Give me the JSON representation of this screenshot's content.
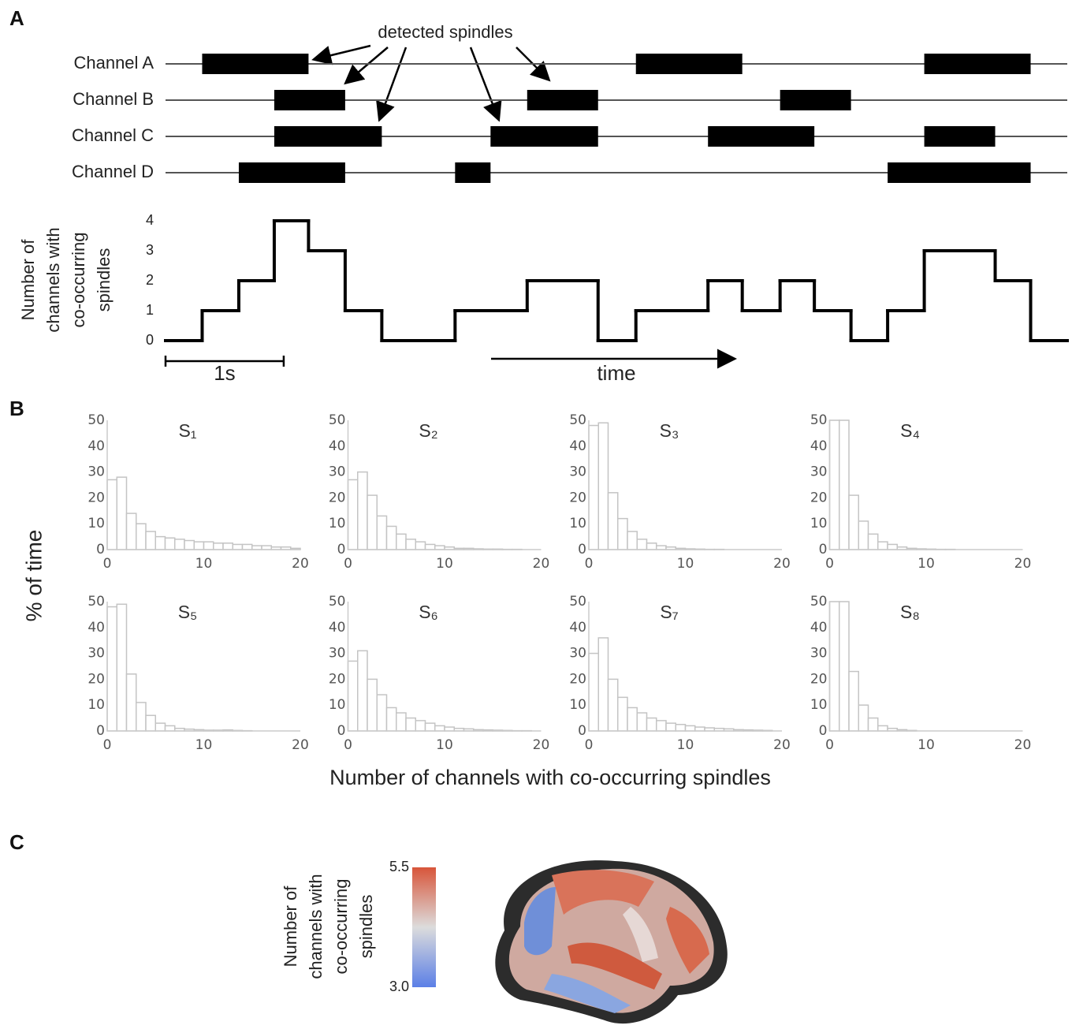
{
  "chart_data": [
    {
      "type": "spindles",
      "panel": "A",
      "annotation": "detected spindles",
      "channels": [
        {
          "name": "Channel A",
          "spindles": [
            [
              0.31,
              1.21
            ],
            [
              3.98,
              4.88
            ],
            [
              6.42,
              7.32
            ]
          ]
        },
        {
          "name": "Channel B",
          "spindles": [
            [
              0.92,
              1.52
            ],
            [
              3.06,
              3.66
            ],
            [
              5.2,
              5.8
            ]
          ]
        },
        {
          "name": "Channel C",
          "spindles": [
            [
              0.92,
              1.83
            ],
            [
              2.75,
              3.66
            ],
            [
              4.59,
              5.49
            ],
            [
              6.42,
              7.02
            ]
          ]
        },
        {
          "name": "Channel D",
          "spindles": [
            [
              0.62,
              1.52
            ],
            [
              2.45,
              2.75
            ],
            [
              6.11,
              7.32
            ]
          ]
        }
      ],
      "step": {
        "bins": [
          0,
          0.31,
          0.62,
          0.92,
          1.21,
          1.52,
          1.83,
          2.45,
          3.06,
          3.66,
          3.98,
          4.59,
          4.88,
          5.2,
          5.49,
          5.8,
          6.11,
          6.42,
          7.02,
          7.32,
          7.63
        ],
        "values": [
          0,
          1,
          2,
          4,
          3,
          1,
          0,
          1,
          2,
          0,
          1,
          2,
          1,
          2,
          1,
          0,
          1,
          3,
          2,
          0
        ],
        "color": "#000000"
      },
      "xlim": [
        0,
        7.63
      ],
      "ylim": [
        0,
        4
      ],
      "yticks": [
        0,
        1,
        2,
        3,
        4
      ],
      "ylabel_lines": [
        "Number of",
        "channels with",
        "co-occurring",
        "spindles"
      ],
      "scalebar": {
        "value": 1,
        "label": "1s"
      },
      "time_label": "time"
    },
    {
      "type": "histogram",
      "panel": "B",
      "ylabel": "% of time",
      "xlabel": "Number of channels with co-occurring spindles",
      "bins": [
        0,
        1,
        2,
        3,
        4,
        5,
        6,
        7,
        8,
        9,
        10,
        11,
        12,
        13,
        14,
        15,
        16,
        17,
        18,
        19,
        20
      ],
      "xlim": [
        0,
        20
      ],
      "xticks": [
        0,
        10,
        20
      ],
      "ylim": [
        0,
        50
      ],
      "yticks": [
        0,
        10,
        20,
        30,
        40,
        50
      ],
      "series": [
        {
          "name": "S₁",
          "color": "#ffffff",
          "values": [
            27,
            28,
            14,
            10,
            7,
            5,
            4.5,
            4,
            3.5,
            3,
            3,
            2.5,
            2.5,
            2,
            2,
            1.5,
            1.5,
            1,
            1,
            0.5
          ]
        },
        {
          "name": "S₂",
          "color": "#ffffff",
          "values": [
            27,
            30,
            21,
            13,
            9,
            6,
            4,
            3,
            2,
            1.5,
            1,
            0.5,
            0.5,
            0.3,
            0.2,
            0.2,
            0.1,
            0.1,
            0,
            0
          ]
        },
        {
          "name": "S₃",
          "color": "#ffffff",
          "values": [
            48,
            49,
            22,
            12,
            7,
            4,
            2.5,
            1.5,
            1,
            0.5,
            0.3,
            0.2,
            0.1,
            0.1,
            0,
            0,
            0,
            0,
            0,
            0
          ]
        },
        {
          "name": "S₄",
          "color": "#ffffff",
          "values": [
            50,
            50,
            21,
            11,
            6,
            3,
            2,
            1,
            0.5,
            0.3,
            0.2,
            0.1,
            0.1,
            0,
            0,
            0,
            0,
            0,
            0,
            0
          ]
        },
        {
          "name": "S₅",
          "color": "#ffffff",
          "values": [
            48,
            49,
            22,
            11,
            6,
            3,
            2,
            1,
            0.7,
            0.5,
            0.3,
            0.3,
            0.4,
            0.2,
            0.1,
            0,
            0,
            0,
            0,
            0
          ]
        },
        {
          "name": "S₆",
          "color": "#ffffff",
          "values": [
            27,
            31,
            20,
            14,
            9,
            7,
            5,
            4,
            3,
            2,
            1.5,
            1,
            0.8,
            0.5,
            0.4,
            0.3,
            0.2,
            0.1,
            0.1,
            0
          ]
        },
        {
          "name": "S₇",
          "color": "#ffffff",
          "values": [
            30,
            36,
            20,
            13,
            9,
            7,
            5,
            4,
            3,
            2.5,
            2,
            1.5,
            1.2,
            1,
            0.8,
            0.5,
            0.4,
            0.3,
            0.2,
            0
          ]
        },
        {
          "name": "S₈",
          "color": "#ffffff",
          "values": [
            50,
            50,
            23,
            10,
            5,
            2,
            1,
            0.5,
            0.2,
            0,
            0,
            0,
            0,
            0,
            0,
            0,
            0,
            0,
            0,
            0
          ]
        }
      ]
    },
    {
      "type": "colorbar",
      "panel": "C",
      "label_lines": [
        "Number of",
        "channels with",
        "co-occurring",
        "spindles"
      ],
      "zlim": [
        3,
        5.5
      ],
      "zticks": [
        {
          "value": 3,
          "label": "3.0"
        },
        {
          "value": 5.5,
          "label": "5.5"
        }
      ],
      "colors": [
        "#5b7fe6",
        "#dcdcdc",
        "#d8553a"
      ]
    }
  ]
}
